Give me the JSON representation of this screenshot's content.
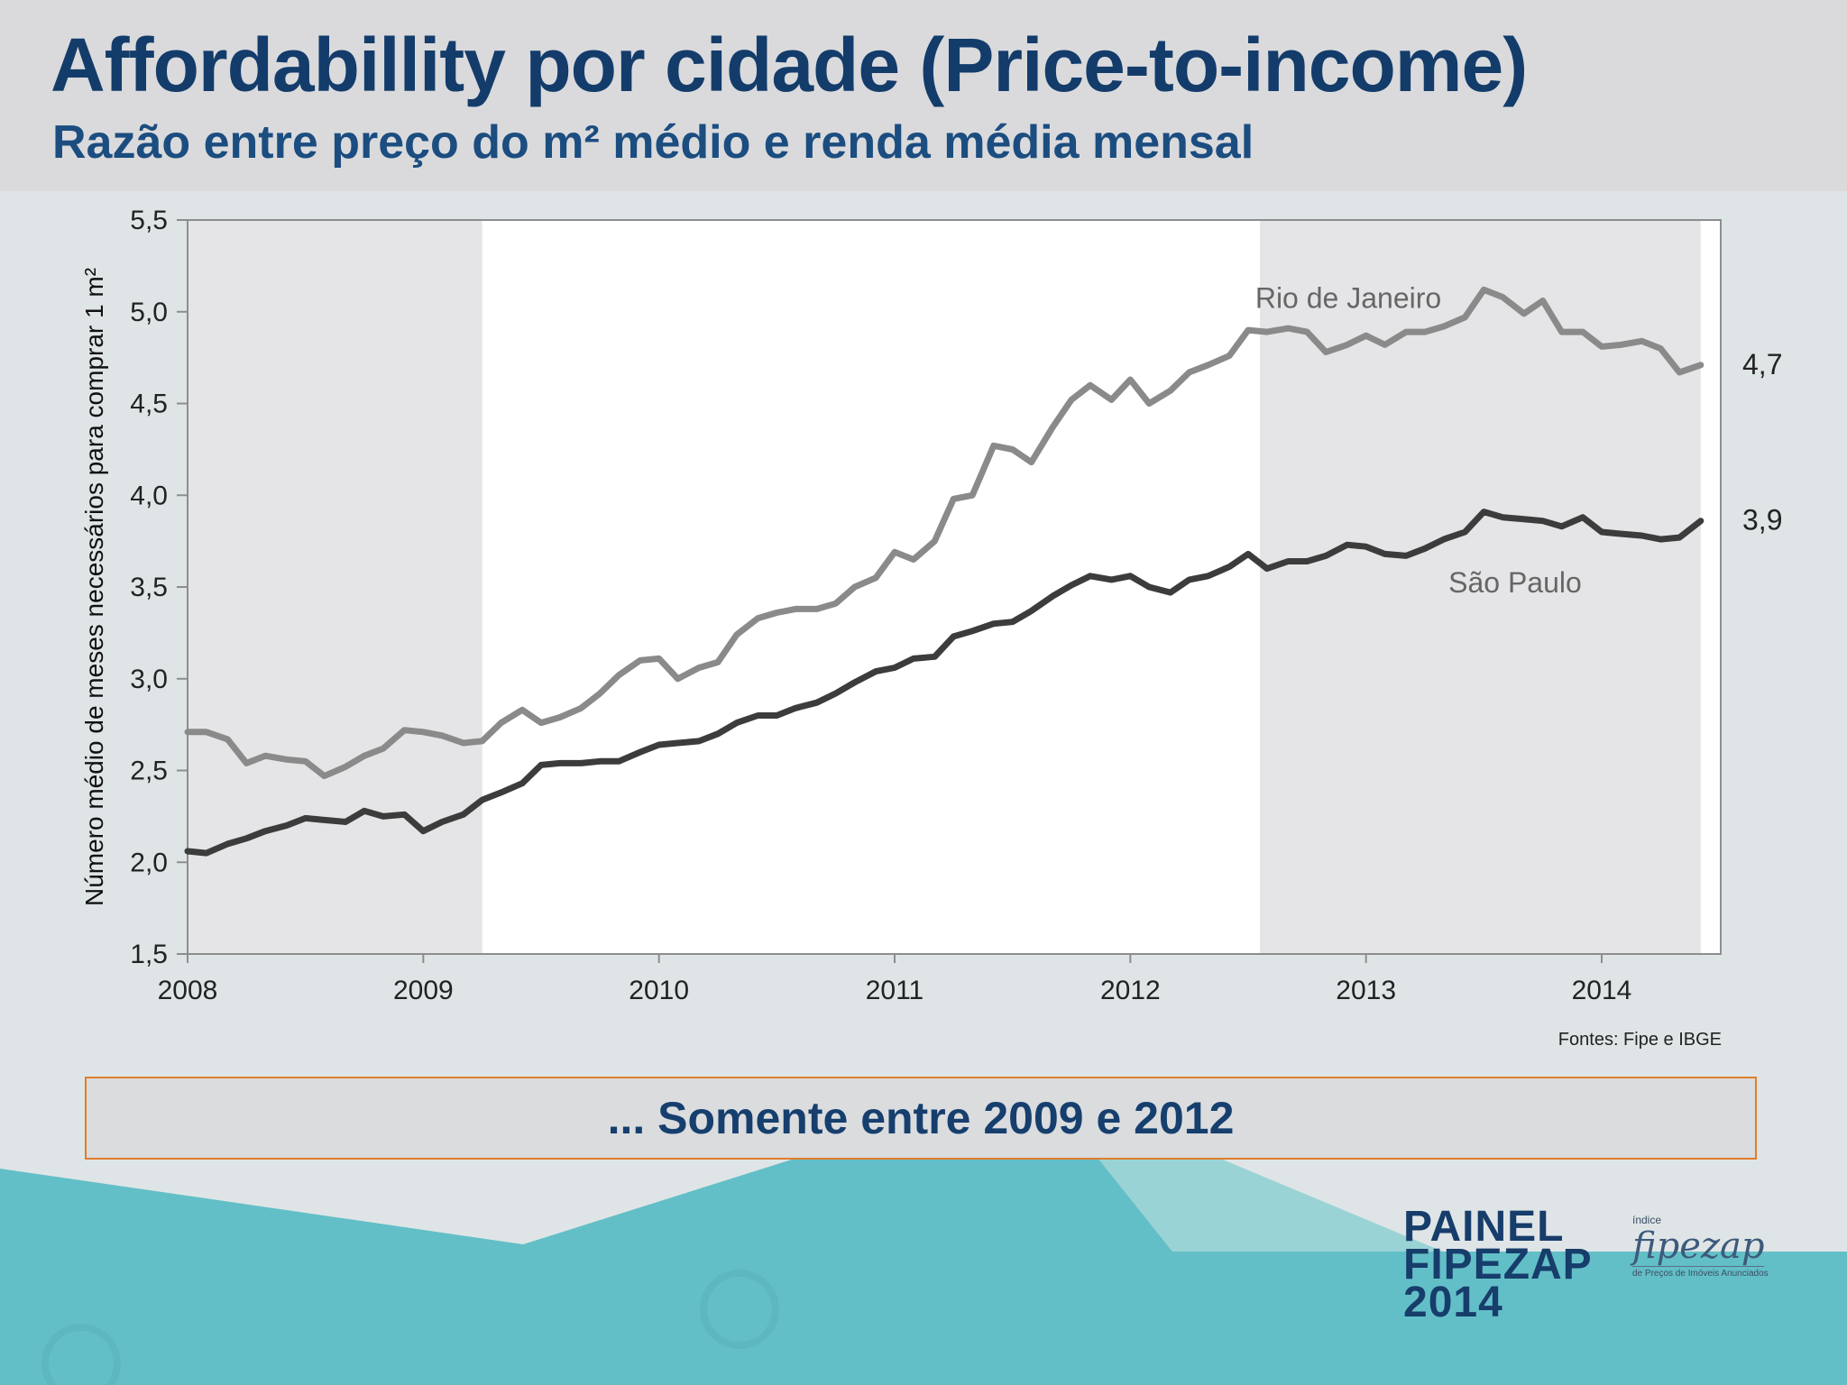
{
  "header": {
    "title": "Affordabillity por cidade (Price-to-income)",
    "subtitle": "Razão entre preço do m² médio e renda média mensal"
  },
  "chart_data": {
    "type": "line",
    "title": "",
    "xlabel": "",
    "ylabel": "Número médio de meses necessários para comprar 1 m²",
    "ylim": [
      1.5,
      5.5
    ],
    "xlim": [
      2008,
      2014.42
    ],
    "y_ticks": [
      "1,5",
      "2,0",
      "2,5",
      "3,0",
      "3,5",
      "4,0",
      "4,5",
      "5,0",
      "5,5"
    ],
    "x_ticks": [
      "2008",
      "2009",
      "2010",
      "2011",
      "2012",
      "2013",
      "2014"
    ],
    "shaded_periods": [
      [
        2008,
        2009.25
      ],
      [
        2012.55,
        2014.42
      ]
    ],
    "grid": false,
    "legend": "none",
    "series": [
      {
        "name": "Rio de Janeiro",
        "color": "#8a8a8a",
        "end_label": "4,7",
        "points": [
          [
            2008.0,
            2.71
          ],
          [
            2008.08,
            2.71
          ],
          [
            2008.17,
            2.67
          ],
          [
            2008.25,
            2.54
          ],
          [
            2008.33,
            2.58
          ],
          [
            2008.42,
            2.56
          ],
          [
            2008.5,
            2.55
          ],
          [
            2008.58,
            2.47
          ],
          [
            2008.67,
            2.52
          ],
          [
            2008.75,
            2.58
          ],
          [
            2008.83,
            2.62
          ],
          [
            2008.92,
            2.72
          ],
          [
            2009.0,
            2.71
          ],
          [
            2009.08,
            2.69
          ],
          [
            2009.17,
            2.65
          ],
          [
            2009.25,
            2.66
          ],
          [
            2009.33,
            2.76
          ],
          [
            2009.42,
            2.83
          ],
          [
            2009.5,
            2.76
          ],
          [
            2009.58,
            2.79
          ],
          [
            2009.67,
            2.84
          ],
          [
            2009.75,
            2.92
          ],
          [
            2009.83,
            3.02
          ],
          [
            2009.92,
            3.1
          ],
          [
            2010.0,
            3.11
          ],
          [
            2010.08,
            3.0
          ],
          [
            2010.17,
            3.06
          ],
          [
            2010.25,
            3.09
          ],
          [
            2010.33,
            3.24
          ],
          [
            2010.42,
            3.33
          ],
          [
            2010.5,
            3.36
          ],
          [
            2010.58,
            3.38
          ],
          [
            2010.67,
            3.38
          ],
          [
            2010.75,
            3.41
          ],
          [
            2010.83,
            3.5
          ],
          [
            2010.92,
            3.55
          ],
          [
            2011.0,
            3.69
          ],
          [
            2011.08,
            3.65
          ],
          [
            2011.17,
            3.75
          ],
          [
            2011.25,
            3.98
          ],
          [
            2011.33,
            4.0
          ],
          [
            2011.42,
            4.27
          ],
          [
            2011.5,
            4.25
          ],
          [
            2011.58,
            4.18
          ],
          [
            2011.67,
            4.37
          ],
          [
            2011.75,
            4.52
          ],
          [
            2011.83,
            4.6
          ],
          [
            2011.92,
            4.52
          ],
          [
            2012.0,
            4.63
          ],
          [
            2012.08,
            4.5
          ],
          [
            2012.17,
            4.57
          ],
          [
            2012.25,
            4.67
          ],
          [
            2012.33,
            4.71
          ],
          [
            2012.42,
            4.76
          ],
          [
            2012.5,
            4.9
          ],
          [
            2012.58,
            4.89
          ],
          [
            2012.67,
            4.91
          ],
          [
            2012.75,
            4.89
          ],
          [
            2012.83,
            4.78
          ],
          [
            2012.92,
            4.82
          ],
          [
            2013.0,
            4.87
          ],
          [
            2013.08,
            4.82
          ],
          [
            2013.17,
            4.89
          ],
          [
            2013.25,
            4.89
          ],
          [
            2013.33,
            4.92
          ],
          [
            2013.42,
            4.97
          ],
          [
            2013.5,
            5.12
          ],
          [
            2013.58,
            5.08
          ],
          [
            2013.67,
            4.99
          ],
          [
            2013.75,
            5.06
          ],
          [
            2013.83,
            4.89
          ],
          [
            2013.92,
            4.89
          ],
          [
            2014.0,
            4.81
          ],
          [
            2014.08,
            4.82
          ],
          [
            2014.17,
            4.84
          ],
          [
            2014.25,
            4.8
          ],
          [
            2014.33,
            4.67
          ],
          [
            2014.42,
            4.71
          ]
        ]
      },
      {
        "name": "São Paulo",
        "color": "#3c3c3c",
        "end_label": "3,9",
        "points": [
          [
            2008.0,
            2.06
          ],
          [
            2008.08,
            2.05
          ],
          [
            2008.17,
            2.1
          ],
          [
            2008.25,
            2.13
          ],
          [
            2008.33,
            2.17
          ],
          [
            2008.42,
            2.2
          ],
          [
            2008.5,
            2.24
          ],
          [
            2008.58,
            2.23
          ],
          [
            2008.67,
            2.22
          ],
          [
            2008.75,
            2.28
          ],
          [
            2008.83,
            2.25
          ],
          [
            2008.92,
            2.26
          ],
          [
            2009.0,
            2.17
          ],
          [
            2009.08,
            2.22
          ],
          [
            2009.17,
            2.26
          ],
          [
            2009.25,
            2.34
          ],
          [
            2009.33,
            2.38
          ],
          [
            2009.42,
            2.43
          ],
          [
            2009.5,
            2.53
          ],
          [
            2009.58,
            2.54
          ],
          [
            2009.67,
            2.54
          ],
          [
            2009.75,
            2.55
          ],
          [
            2009.83,
            2.55
          ],
          [
            2009.92,
            2.6
          ],
          [
            2010.0,
            2.64
          ],
          [
            2010.08,
            2.65
          ],
          [
            2010.17,
            2.66
          ],
          [
            2010.25,
            2.7
          ],
          [
            2010.33,
            2.76
          ],
          [
            2010.42,
            2.8
          ],
          [
            2010.5,
            2.8
          ],
          [
            2010.58,
            2.84
          ],
          [
            2010.67,
            2.87
          ],
          [
            2010.75,
            2.92
          ],
          [
            2010.83,
            2.98
          ],
          [
            2010.92,
            3.04
          ],
          [
            2011.0,
            3.06
          ],
          [
            2011.08,
            3.11
          ],
          [
            2011.17,
            3.12
          ],
          [
            2011.25,
            3.23
          ],
          [
            2011.33,
            3.26
          ],
          [
            2011.42,
            3.3
          ],
          [
            2011.5,
            3.31
          ],
          [
            2011.58,
            3.37
          ],
          [
            2011.67,
            3.45
          ],
          [
            2011.75,
            3.51
          ],
          [
            2011.83,
            3.56
          ],
          [
            2011.92,
            3.54
          ],
          [
            2012.0,
            3.56
          ],
          [
            2012.08,
            3.5
          ],
          [
            2012.17,
            3.47
          ],
          [
            2012.25,
            3.54
          ],
          [
            2012.33,
            3.56
          ],
          [
            2012.42,
            3.61
          ],
          [
            2012.5,
            3.68
          ],
          [
            2012.58,
            3.6
          ],
          [
            2012.67,
            3.64
          ],
          [
            2012.75,
            3.64
          ],
          [
            2012.83,
            3.67
          ],
          [
            2012.92,
            3.73
          ],
          [
            2013.0,
            3.72
          ],
          [
            2013.08,
            3.68
          ],
          [
            2013.17,
            3.67
          ],
          [
            2013.25,
            3.71
          ],
          [
            2013.33,
            3.76
          ],
          [
            2013.42,
            3.8
          ],
          [
            2013.5,
            3.91
          ],
          [
            2013.58,
            3.88
          ],
          [
            2013.67,
            3.87
          ],
          [
            2013.75,
            3.86
          ],
          [
            2013.83,
            3.83
          ],
          [
            2013.92,
            3.88
          ],
          [
            2014.0,
            3.8
          ],
          [
            2014.08,
            3.79
          ],
          [
            2014.17,
            3.78
          ],
          [
            2014.25,
            3.76
          ],
          [
            2014.33,
            3.77
          ],
          [
            2014.42,
            3.86
          ]
        ]
      }
    ]
  },
  "source": "Fontes: Fipe e IBGE",
  "callout": "... Somente entre 2009 e 2012",
  "brand": {
    "line1": "PAINEL",
    "line2": "FIPEZAP",
    "line3": "2014"
  },
  "fipezap": {
    "small": "índice",
    "logo": "fipezap",
    "tagline": "de Preços de Imóveis Anunciados"
  },
  "colors": {
    "title": "#133c6b",
    "callout_border": "#e07e2c",
    "teal": "#63bfc7",
    "shade": "#e5e5e7"
  }
}
